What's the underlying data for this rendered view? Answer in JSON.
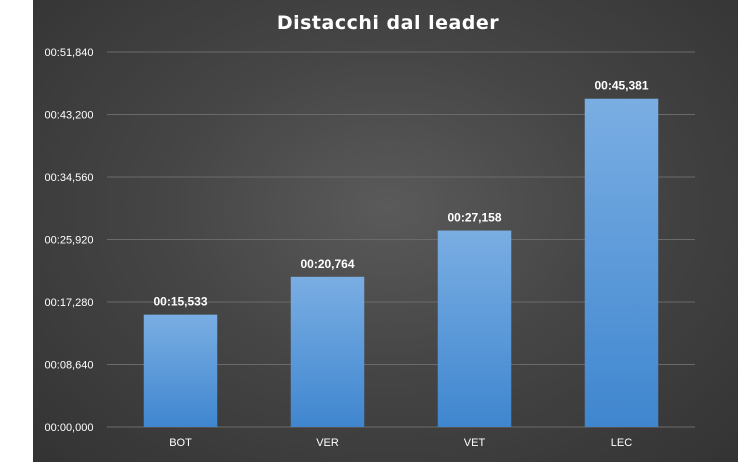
{
  "chart_data": {
    "type": "bar",
    "title": "Distacchi dal leader",
    "categories": [
      "BOT",
      "VER",
      "VET",
      "LEC"
    ],
    "values": [
      15.533,
      20.764,
      27.158,
      45.381
    ],
    "data_labels": [
      "00:15,533",
      "00:20,764",
      "00:27,158",
      "00:45,381"
    ],
    "y_ticks": [
      0,
      8.64,
      17.28,
      25.92,
      34.56,
      43.2,
      51.84
    ],
    "y_tick_labels": [
      "00:00,000",
      "00:08,640",
      "00:17,280",
      "00:25,920",
      "00:34,560",
      "00:43,200",
      "00:51,840"
    ],
    "ylim": [
      0,
      51.84
    ],
    "xlabel": "",
    "ylabel": "",
    "grid": true,
    "legend": "none",
    "colors": {
      "bar_top": "#7aaee3",
      "bar_bottom": "#3f86cf",
      "text": "#ffffff",
      "gridline": "#6a6a6a"
    }
  }
}
